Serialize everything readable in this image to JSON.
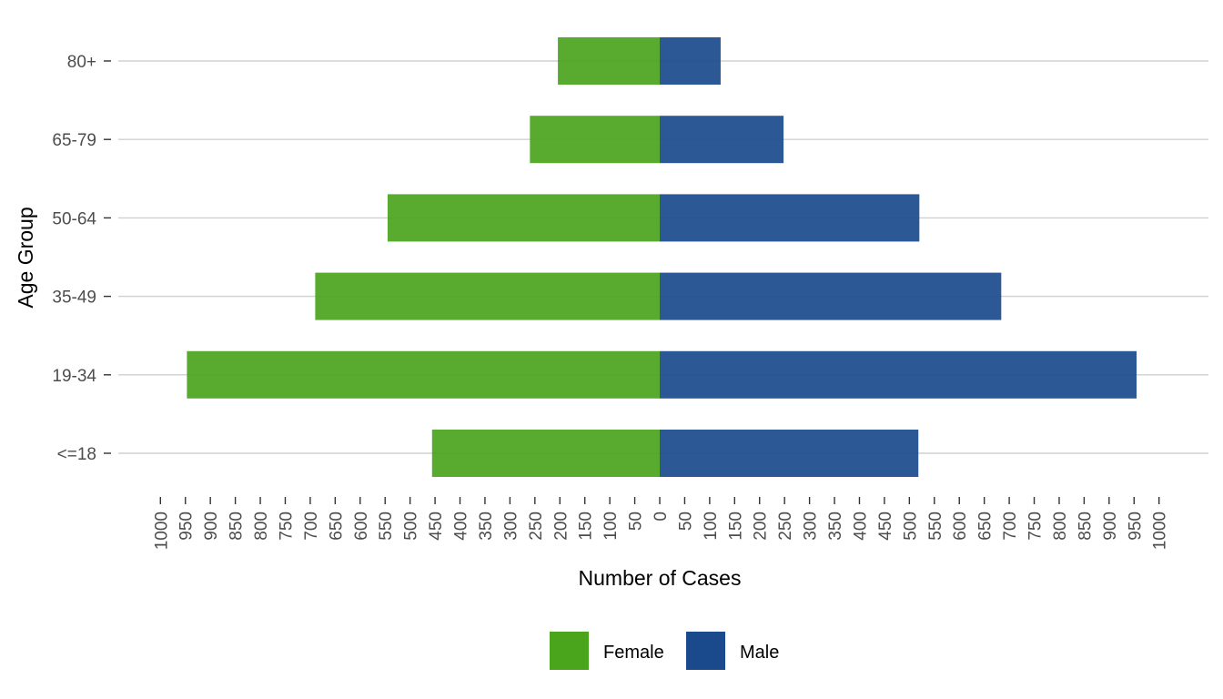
{
  "chart_data": {
    "type": "bar",
    "orientation": "horizontal",
    "xlabel": "Number of Cases",
    "ylabel": "Age Group",
    "xlim": [
      -1000,
      1000
    ],
    "x_ticks": [
      -1000,
      -950,
      -900,
      -850,
      -800,
      -750,
      -700,
      -650,
      -600,
      -550,
      -500,
      -450,
      -400,
      -350,
      -300,
      -250,
      -200,
      -150,
      -100,
      -50,
      0,
      50,
      100,
      150,
      200,
      250,
      300,
      350,
      400,
      450,
      500,
      550,
      600,
      650,
      700,
      750,
      800,
      850,
      900,
      950,
      1000
    ],
    "x_tick_labels": [
      "1000",
      "950",
      "900",
      "850",
      "800",
      "750",
      "700",
      "650",
      "600",
      "550",
      "500",
      "450",
      "400",
      "350",
      "300",
      "250",
      "200",
      "150",
      "100",
      "50",
      "0",
      "50",
      "100",
      "150",
      "200",
      "250",
      "300",
      "350",
      "400",
      "450",
      "500",
      "550",
      "600",
      "650",
      "700",
      "750",
      "800",
      "850",
      "900",
      "950",
      "1000"
    ],
    "categories": [
      "<=18",
      "19-34",
      "35-49",
      "50-64",
      "65-79",
      "80+"
    ],
    "series": [
      {
        "name": "Female",
        "color": "#4aa41c",
        "values": [
          -456,
          -947,
          -690,
          -545,
          -260,
          -204
        ]
      },
      {
        "name": "Male",
        "color": "#1a4a8c",
        "values": [
          518,
          955,
          684,
          520,
          248,
          122
        ]
      }
    ],
    "grid": "horizontal major lines only",
    "legend_position": "bottom"
  }
}
